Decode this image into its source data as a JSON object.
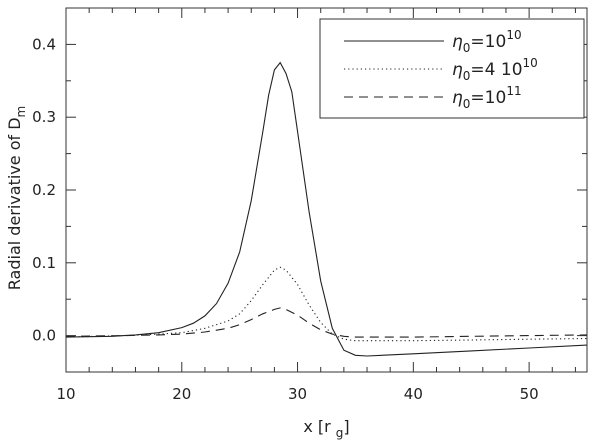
{
  "chart_data": {
    "type": "line",
    "xlabel": "x [r",
    "xlabel_sub": "g",
    "xlabel_end": "]",
    "ylabel": "Radial derivative of D",
    "ylabel_sub": "m",
    "xlim": [
      10,
      55
    ],
    "ylim": [
      -0.05,
      0.45
    ],
    "x_ticks": [
      10,
      20,
      30,
      40,
      50
    ],
    "x_tick_labels": [
      "10",
      "20",
      "30",
      "40",
      "50"
    ],
    "y_ticks": [
      0.0,
      0.1,
      0.2,
      0.3,
      0.4
    ],
    "y_tick_labels": [
      "0.0",
      "0.1",
      "0.2",
      "0.3",
      "0.4"
    ],
    "grid": false,
    "legend_position": "top-right",
    "series": [
      {
        "name": "η₀=10¹⁰",
        "legend": {
          "base": "η",
          "sub": "0",
          "eq": "=10",
          "sup": "10"
        },
        "style": "solid",
        "x": [
          10,
          14,
          16,
          18,
          20,
          21,
          22,
          23,
          24,
          25,
          26,
          27,
          27.5,
          28,
          28.5,
          29,
          29.5,
          30,
          31,
          32,
          33,
          34,
          35,
          36,
          40,
          45,
          50,
          55
        ],
        "y": [
          -0.002,
          -0.001,
          0.001,
          0.004,
          0.011,
          0.017,
          0.027,
          0.044,
          0.072,
          0.115,
          0.185,
          0.28,
          0.33,
          0.365,
          0.375,
          0.36,
          0.335,
          0.28,
          0.17,
          0.075,
          0.01,
          -0.02,
          -0.027,
          -0.028,
          -0.025,
          -0.021,
          -0.017,
          -0.013
        ]
      },
      {
        "name": "η₀=4 10¹⁰",
        "legend": {
          "base": "η",
          "sub": "0",
          "eq": "=4  10",
          "sup": "10"
        },
        "style": "dotted",
        "x": [
          10,
          15,
          18,
          20,
          22,
          24,
          25,
          26,
          27,
          28,
          28.5,
          29,
          30,
          31,
          32,
          33,
          34,
          35,
          40,
          45,
          50,
          55
        ],
        "y": [
          -0.002,
          0.0,
          0.002,
          0.004,
          0.01,
          0.02,
          0.03,
          0.048,
          0.07,
          0.09,
          0.094,
          0.09,
          0.07,
          0.042,
          0.018,
          0.002,
          -0.005,
          -0.007,
          -0.007,
          -0.006,
          -0.005,
          -0.004
        ]
      },
      {
        "name": "η₀=10¹¹",
        "legend": {
          "base": "η",
          "sub": "0",
          "eq": "=10",
          "sup": "11"
        },
        "style": "dashed",
        "x": [
          10,
          15,
          18,
          20,
          22,
          24,
          25,
          26,
          27,
          28,
          28.5,
          29,
          30,
          31,
          32,
          33,
          34,
          35,
          40,
          45,
          50,
          55
        ],
        "y": [
          -0.001,
          0.0,
          0.001,
          0.002,
          0.005,
          0.01,
          0.015,
          0.022,
          0.03,
          0.036,
          0.038,
          0.036,
          0.028,
          0.017,
          0.008,
          0.002,
          -0.001,
          -0.002,
          -0.002,
          -0.001,
          0.0,
          0.001
        ]
      }
    ]
  }
}
